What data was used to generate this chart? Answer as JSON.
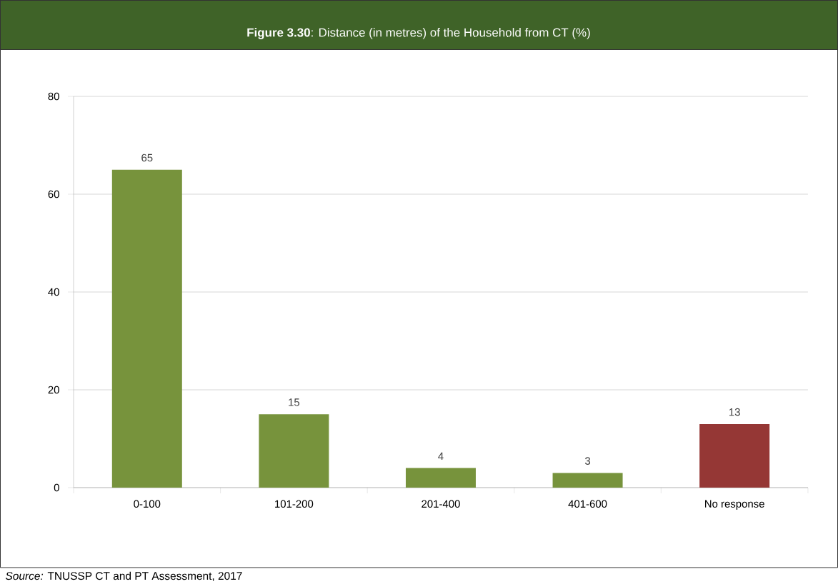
{
  "chart_data": {
    "type": "bar",
    "title": "**Figure 3.30**: Distance (in metres) of the Household from CT (%)",
    "categories": [
      "0-100",
      "101-200",
      "201-400",
      "401-600",
      "No response"
    ],
    "values": [
      65,
      15,
      4,
      3,
      13
    ],
    "colors": [
      "#77933c",
      "#77933c",
      "#77933c",
      "#77933c",
      "#953735"
    ],
    "ylim": [
      0,
      80
    ],
    "yticks": [
      0,
      20,
      40,
      60,
      80
    ],
    "grid": "y",
    "data_labels": true,
    "annotations": [
      "*Source:* TNUSSP CT and PT Assessment, 2017"
    ]
  }
}
